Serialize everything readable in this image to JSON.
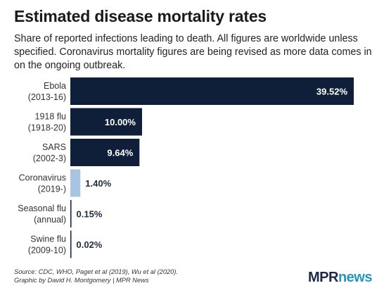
{
  "title": "Estimated disease mortality rates",
  "subtitle": "Share of reported infections leading to death. All figures are worldwide unless specified. Coronavirus mortality figures are being revised as more data comes in on the ongoing outbreak.",
  "footer": {
    "source": "Source: CDC, WHO, Paget et al (2019), Wu et al (2020).",
    "credit": "Graphic by David H. Montgomery | MPR News"
  },
  "logo": {
    "part1": "MPR",
    "part2": "news"
  },
  "colors": {
    "dark": "#0f1f3a",
    "highlight": "#a8c4e0",
    "text_dark": "#1f2a44",
    "text_light": "#ffffff"
  },
  "chart_data": {
    "type": "bar",
    "orientation": "horizontal",
    "title": "Estimated disease mortality rates",
    "categories": [
      [
        "Ebola",
        "(2013-16)"
      ],
      [
        "1918 flu",
        "(1918-20)"
      ],
      [
        "SARS",
        "(2002-3)"
      ],
      [
        "Coronavirus",
        "(2019-)"
      ],
      [
        "Seasonal flu",
        "(annual)"
      ],
      [
        "Swine flu",
        "(2009-10)"
      ]
    ],
    "values": [
      39.52,
      10.0,
      9.64,
      1.4,
      0.15,
      0.02
    ],
    "labels": [
      "39.52%",
      "10.00%",
      "9.64%",
      "1.40%",
      "0.15%",
      "0.02%"
    ],
    "highlight_index": 3,
    "xlim": [
      0,
      39.52
    ],
    "grid": false,
    "xlabel": "",
    "ylabel": ""
  }
}
